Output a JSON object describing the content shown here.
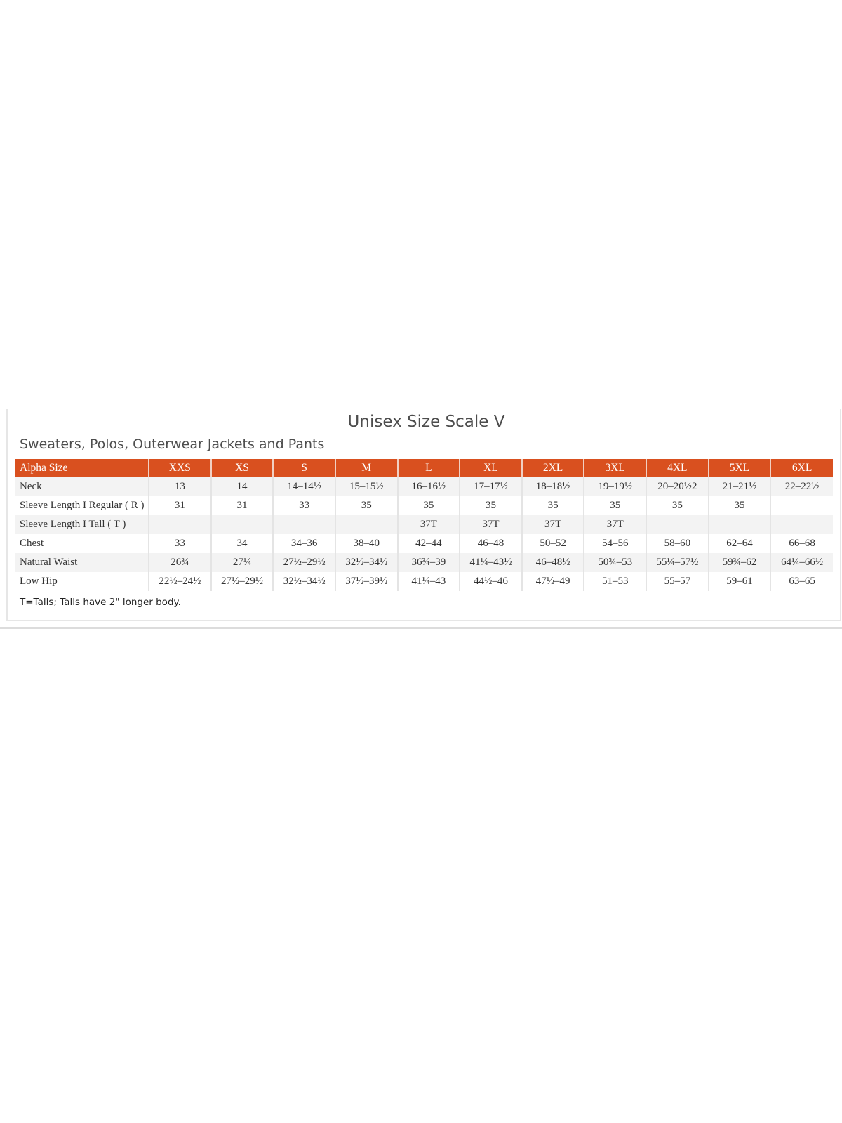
{
  "title": "Unisex Size Scale V",
  "subtitle": "Sweaters, Polos, Outerwear Jackets and Pants",
  "colors": {
    "header_bg": "#d9501f",
    "header_text": "#ffffff",
    "alt_row": "#f3f3f3"
  },
  "table": {
    "headers": [
      "Alpha Size",
      "XXS",
      "XS",
      "S",
      "M",
      "L",
      "XL",
      "2XL",
      "3XL",
      "4XL",
      "5XL",
      "6XL"
    ],
    "rows": [
      [
        "Neck",
        "13",
        "14",
        "14–14½",
        "15–15½",
        "16–16½",
        "17–17½",
        "18–18½",
        "19–19½",
        "20–20½2",
        "21–21½",
        "22–22½"
      ],
      [
        "Sleeve Length  I  Regular ( R )",
        "31",
        "31",
        "33",
        "35",
        "35",
        "35",
        "35",
        "35",
        "35",
        "35",
        ""
      ],
      [
        "Sleeve Length  I  Tall ( T )",
        "",
        "",
        "",
        "",
        "37T",
        "37T",
        "37T",
        "37T",
        "",
        "",
        ""
      ],
      [
        "Chest",
        "33",
        "34",
        "34–36",
        "38–40",
        "42–44",
        "46–48",
        "50–52",
        "54–56",
        "58–60",
        "62–64",
        "66–68"
      ],
      [
        "Natural Waist",
        "26¾",
        "27¼",
        "27½–29½",
        "32½–34½",
        "36¾–39",
        "41¼–43½",
        "46–48½",
        "50¾–53",
        "55¼–57½",
        "59¾–62",
        "64¼–66½"
      ],
      [
        "Low Hip",
        "22½–24½",
        "27½–29½",
        "32½–34½",
        "37½–39½",
        "41¼–43",
        "44½–46",
        "47½–49",
        "51–53",
        "55–57",
        "59–61",
        "63–65"
      ]
    ]
  },
  "footnote": "T=Talls; Talls have 2\" longer body."
}
